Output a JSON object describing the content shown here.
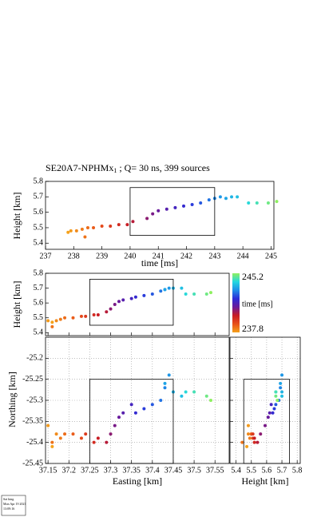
{
  "note": [
    "Sat king",
    "Mon Apr 19 2021",
    "13:09:16"
  ],
  "chart_data": [
    {
      "type": "scatter",
      "title": "SE20A7-NPHMx",
      "title_subscript": "1",
      "title_suffix": " ; Q= 30 ns, 399 sources",
      "x_label": "time [ms]",
      "y_label": "Height [km]",
      "x": [
        237.8,
        237.9,
        238.1,
        238.3,
        238.4,
        238.5,
        238.7,
        239.0,
        239.3,
        239.6,
        239.9,
        240.1,
        240.6,
        240.8,
        241.0,
        241.3,
        241.6,
        241.9,
        242.2,
        242.5,
        242.8,
        243.0,
        243.2,
        243.4,
        243.6,
        243.8,
        244.2,
        244.5,
        244.9,
        245.2
      ],
      "values": [
        5.47,
        5.48,
        5.48,
        5.49,
        5.44,
        5.5,
        5.5,
        5.51,
        5.51,
        5.52,
        5.52,
        5.54,
        5.56,
        5.59,
        5.61,
        5.62,
        5.63,
        5.64,
        5.65,
        5.66,
        5.68,
        5.69,
        5.7,
        5.69,
        5.7,
        5.7,
        5.66,
        5.66,
        5.66,
        5.67
      ],
      "xlim": [
        237,
        245.1
      ],
      "ylim": [
        5.36,
        5.8
      ],
      "xticks": [
        237,
        238,
        239,
        240,
        241,
        242,
        243,
        244,
        245
      ],
      "yticks": [
        5.4,
        5.5,
        5.6,
        5.7,
        5.8
      ],
      "box": {
        "x": [
          240,
          243
        ],
        "y": [
          5.45,
          5.76
        ]
      },
      "grid": false
    },
    {
      "type": "scatter",
      "y_label": "Height [km]",
      "x": [
        37.16,
        37.15,
        37.17,
        37.18,
        37.16,
        37.19,
        37.21,
        37.23,
        37.24,
        37.26,
        37.27,
        37.29,
        37.3,
        37.31,
        37.32,
        37.33,
        37.35,
        37.36,
        37.38,
        37.4,
        37.42,
        37.43,
        37.44,
        37.43,
        37.45,
        37.47,
        37.48,
        37.5,
        37.53,
        37.54
      ],
      "values": [
        5.47,
        5.48,
        5.48,
        5.49,
        5.44,
        5.5,
        5.5,
        5.51,
        5.51,
        5.52,
        5.52,
        5.54,
        5.56,
        5.59,
        5.61,
        5.62,
        5.63,
        5.64,
        5.65,
        5.66,
        5.68,
        5.69,
        5.7,
        5.69,
        5.7,
        5.7,
        5.66,
        5.66,
        5.66,
        5.67
      ],
      "xlim": [
        37.144,
        37.584
      ],
      "ylim": [
        5.38,
        5.8
      ],
      "xticks": [
        37.15,
        37.2,
        37.25,
        37.3,
        37.35,
        37.4,
        37.45,
        37.5,
        37.55
      ],
      "yticks": [
        5.4,
        5.5,
        5.6,
        5.7,
        5.8
      ],
      "box": {
        "x": [
          37.25,
          37.45
        ],
        "y": [
          5.45,
          5.76
        ]
      },
      "grid": false,
      "colorbar": {
        "label": "time [ms]",
        "min": 237.8,
        "max": 245.2,
        "colors": [
          "#f5a21b",
          "#e8501a",
          "#c81c24",
          "#6a1a9a",
          "#2c2cd8",
          "#1e8fe8",
          "#22d8e0",
          "#8ef060"
        ]
      }
    },
    {
      "type": "scatter",
      "x_label": "Easting [km]",
      "y_label": "Northing [km]",
      "x": [
        37.16,
        37.15,
        37.17,
        37.18,
        37.16,
        37.19,
        37.21,
        37.23,
        37.24,
        37.26,
        37.27,
        37.29,
        37.3,
        37.31,
        37.32,
        37.33,
        37.35,
        37.36,
        37.38,
        37.4,
        37.42,
        37.43,
        37.44,
        37.43,
        37.45,
        37.47,
        37.48,
        37.5,
        37.53,
        37.54
      ],
      "values": [
        -25.41,
        -25.36,
        -25.38,
        -25.39,
        -25.4,
        -25.38,
        -25.38,
        -25.39,
        -25.38,
        -25.4,
        -25.39,
        -25.4,
        -25.38,
        -25.36,
        -25.34,
        -25.33,
        -25.31,
        -25.33,
        -25.32,
        -25.31,
        -25.3,
        -25.27,
        -25.24,
        -25.26,
        -25.28,
        -25.29,
        -25.28,
        -25.28,
        -25.29,
        -25.3
      ],
      "xlim": [
        37.144,
        37.584
      ],
      "ylim": [
        -25.45,
        -25.15
      ],
      "xticks": [
        37.15,
        37.2,
        37.25,
        37.3,
        37.35,
        37.4,
        37.45,
        37.5,
        37.55
      ],
      "yticks": [
        -25.2,
        -25.25,
        -25.3,
        -25.35,
        -25.4,
        -25.45
      ],
      "box": {
        "x": [
          37.25,
          37.45
        ],
        "y": [
          -25.45,
          -25.25
        ]
      },
      "grid": true
    },
    {
      "type": "scatter",
      "x_label": "Height [km]",
      "x": [
        5.47,
        5.48,
        5.48,
        5.49,
        5.44,
        5.5,
        5.5,
        5.51,
        5.51,
        5.52,
        5.52,
        5.54,
        5.56,
        5.59,
        5.61,
        5.62,
        5.63,
        5.64,
        5.65,
        5.66,
        5.68,
        5.69,
        5.7,
        5.69,
        5.7,
        5.7,
        5.66,
        5.66,
        5.66,
        5.67
      ],
      "values": [
        -25.41,
        -25.36,
        -25.38,
        -25.39,
        -25.4,
        -25.38,
        -25.38,
        -25.39,
        -25.38,
        -25.4,
        -25.39,
        -25.4,
        -25.38,
        -25.36,
        -25.34,
        -25.33,
        -25.31,
        -25.33,
        -25.32,
        -25.31,
        -25.3,
        -25.27,
        -25.24,
        -25.26,
        -25.28,
        -25.29,
        -25.28,
        -25.28,
        -25.29,
        -25.3
      ],
      "xlim": [
        5.36,
        5.82
      ],
      "ylim": [
        -25.45,
        -25.15
      ],
      "xticks": [
        5.4,
        5.5,
        5.6,
        5.7,
        5.8
      ],
      "yticks": [
        -25.2,
        -25.25,
        -25.3,
        -25.35,
        -25.4,
        -25.45
      ],
      "box": {
        "x": [
          5.45,
          5.75
        ],
        "y": [
          -25.45,
          -25.25
        ]
      },
      "grid": true
    }
  ]
}
